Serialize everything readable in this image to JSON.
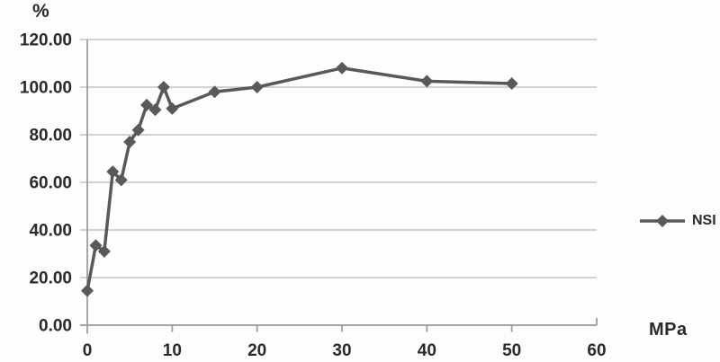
{
  "chart_data": {
    "type": "line",
    "title": "",
    "ylabel": "%",
    "xlabel": "MPa",
    "x": [
      0,
      1,
      2,
      3,
      4,
      5,
      6,
      7,
      8,
      9,
      10,
      15,
      20,
      30,
      40,
      50
    ],
    "series": [
      {
        "name": "NSI",
        "color": "#58595b",
        "values": [
          14.5,
          33.5,
          31,
          64.5,
          61,
          77,
          82,
          92.5,
          90.5,
          100,
          91,
          98,
          100,
          108,
          102.5,
          101.5
        ]
      }
    ],
    "xticks": [
      0,
      10,
      20,
      30,
      40,
      50,
      60
    ],
    "xtick_labels": [
      "0",
      "10",
      "20",
      "30",
      "40",
      "50",
      "60"
    ],
    "yticks": [
      0,
      20,
      40,
      60,
      80,
      100,
      120
    ],
    "ytick_labels": [
      "0.00",
      "20.00",
      "40.00",
      "60.00",
      "80.00",
      "100.00",
      "120.00"
    ],
    "xlim": [
      0,
      60
    ],
    "ylim": [
      0,
      120
    ],
    "grid": "horizontal",
    "marker": "diamond",
    "legend_position": "right",
    "colors": {
      "gridline": "#c3c3c3",
      "axis": "#9d9d9d",
      "text": "#2a2a2a"
    }
  }
}
